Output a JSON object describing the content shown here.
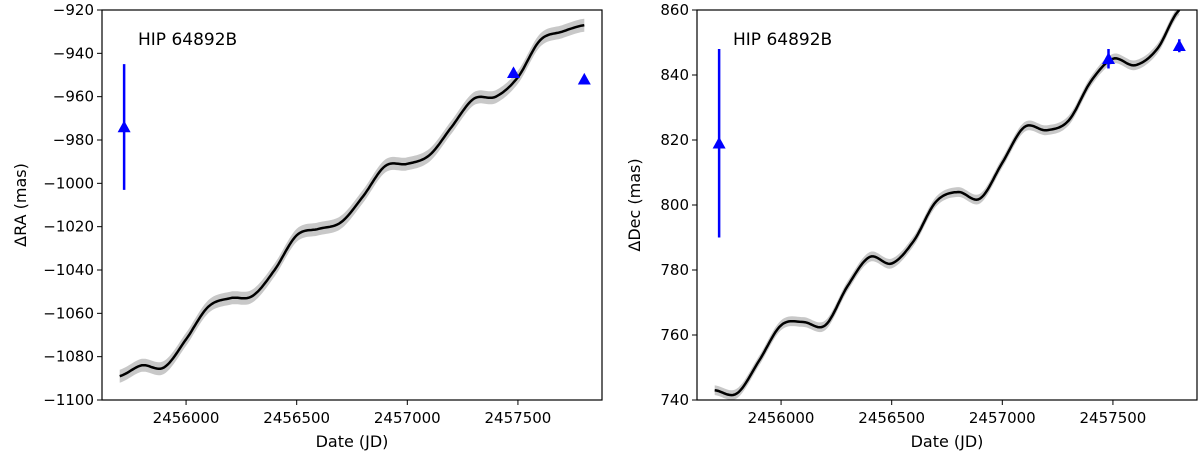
{
  "colors": {
    "model_line": "#000000",
    "band": "#c8c8c8",
    "points": "#0000ff"
  },
  "chart_data": [
    {
      "type": "line",
      "annotation": "HIP 64892B",
      "xlabel": "Date (JD)",
      "ylabel": "ΔRA (mas)",
      "xlim": [
        2455620,
        2457880
      ],
      "ylim": [
        -1100,
        -920
      ],
      "xticks": [
        2456000,
        2456500,
        2457000,
        2457500
      ],
      "xtick_labels": [
        "2456000",
        "2456500",
        "2457000",
        "2457500"
      ],
      "yticks": [
        -1100,
        -1080,
        -1060,
        -1040,
        -1020,
        -1000,
        -980,
        -960,
        -940,
        -920
      ],
      "ytick_labels": [
        "−1100",
        "−1080",
        "−1060",
        "−1040",
        "−1020",
        "−1000",
        "−980",
        "−960",
        "−940",
        "−920"
      ],
      "grid": false,
      "series": [
        {
          "kind": "model",
          "x": [
            2455700,
            2455800,
            2455900,
            2456000,
            2456100,
            2456200,
            2456300,
            2456400,
            2456500,
            2456600,
            2456700,
            2456800,
            2456900,
            2457000,
            2457100,
            2457200,
            2457300,
            2457400,
            2457500,
            2457600,
            2457700,
            2457800
          ],
          "y": [
            -1089,
            -1084,
            -1085,
            -1072,
            -1057,
            -1053,
            -1052,
            -1040,
            -1024,
            -1021,
            -1018,
            -1006,
            -992,
            -991,
            -987,
            -974,
            -961,
            -960,
            -951,
            -934,
            -930,
            -927
          ],
          "band_halfwidth": 3
        },
        {
          "kind": "measurements",
          "x": [
            2455720,
            2457480,
            2457800
          ],
          "y": [
            -974,
            -949,
            -952
          ],
          "yerr": [
            29,
            2,
            0
          ]
        }
      ]
    },
    {
      "type": "line",
      "annotation": "HIP 64892B",
      "xlabel": "Date (JD)",
      "ylabel": "ΔDec (mas)",
      "xlim": [
        2455620,
        2457880
      ],
      "ylim": [
        740,
        860
      ],
      "xticks": [
        2456000,
        2456500,
        2457000,
        2457500
      ],
      "xtick_labels": [
        "2456000",
        "2456500",
        "2457000",
        "2457500"
      ],
      "yticks": [
        740,
        760,
        780,
        800,
        820,
        840,
        860
      ],
      "ytick_labels": [
        "740",
        "760",
        "780",
        "800",
        "820",
        "840",
        "860"
      ],
      "grid": false,
      "series": [
        {
          "kind": "model",
          "x": [
            2455700,
            2455800,
            2455900,
            2456000,
            2456100,
            2456200,
            2456300,
            2456400,
            2456500,
            2456600,
            2456700,
            2456800,
            2456900,
            2457000,
            2457100,
            2457200,
            2457300,
            2457400,
            2457500,
            2457600,
            2457700,
            2457800
          ],
          "y": [
            743,
            742,
            752,
            763,
            764,
            763,
            775,
            784,
            782,
            789,
            801,
            804,
            802,
            813,
            824,
            823,
            826,
            838,
            845,
            843,
            848,
            860
          ],
          "band_halfwidth": 1.5
        },
        {
          "kind": "measurements",
          "x": [
            2455720,
            2457480,
            2457800
          ],
          "y": [
            819,
            845,
            849
          ],
          "yerr": [
            29,
            3,
            2
          ]
        }
      ]
    }
  ]
}
